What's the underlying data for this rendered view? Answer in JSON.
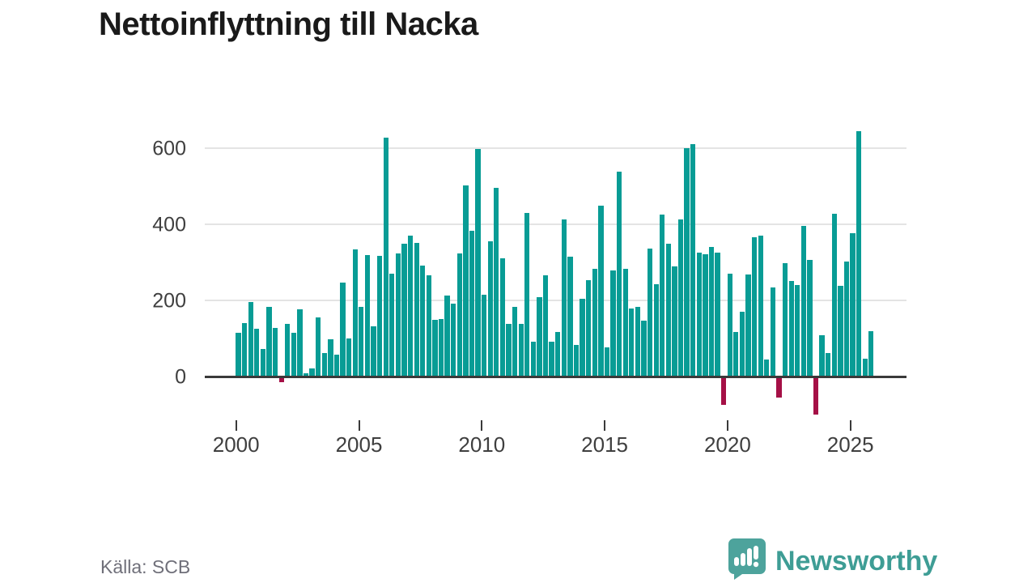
{
  "page": {
    "title": "Nettoinflyttning till Nacka",
    "source": "Källa: SCB",
    "logo_text": "Newsworthy"
  },
  "chart_data": {
    "type": "bar",
    "title": "Nettoinflyttning till Nacka",
    "xlabel": "",
    "ylabel": "",
    "periodicity": "quarterly",
    "start_period": "2000 Q1",
    "end_period": "2025 Q4",
    "x_ticks": [
      "2000",
      "2005",
      "2010",
      "2015",
      "2020",
      "2025"
    ],
    "y_ticks": [
      0,
      200,
      400,
      600
    ],
    "ylim": [
      -110,
      680
    ],
    "grid": "horizontal",
    "legend": "none",
    "bar_color": "#089c95",
    "negative_bar_color": "#a51046",
    "values": [
      115,
      141,
      195,
      125,
      73,
      182,
      128,
      -15,
      138,
      114,
      177,
      8,
      21,
      155,
      62,
      98,
      57,
      247,
      100,
      335,
      183,
      320,
      131,
      317,
      628,
      271,
      323,
      350,
      370,
      351,
      291,
      265,
      150,
      152,
      213,
      191,
      324,
      502,
      383,
      597,
      215,
      356,
      495,
      311,
      138,
      183,
      138,
      430,
      92,
      209,
      266,
      92,
      117,
      413,
      314,
      84,
      204,
      254,
      282,
      449,
      77,
      278,
      538,
      282,
      179,
      182,
      147,
      337,
      243,
      426,
      350,
      289,
      413,
      601,
      610,
      326,
      321,
      340,
      325,
      -75,
      270,
      117,
      170,
      268,
      365,
      371,
      45,
      234,
      -55,
      298,
      252,
      241,
      396,
      307,
      -100,
      108,
      62,
      428,
      238,
      303,
      376,
      645,
      46,
      119
    ]
  }
}
